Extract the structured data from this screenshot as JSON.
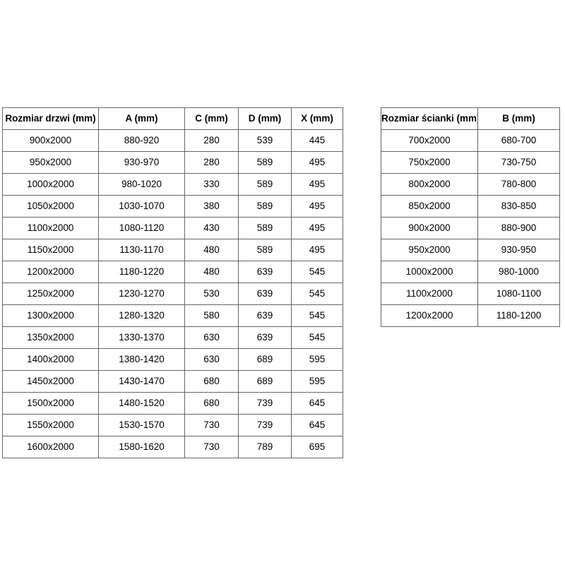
{
  "colors": {
    "background": "#ffffff",
    "border": "#666666",
    "text": "#000000"
  },
  "tables": [
    {
      "name": "door-size-table",
      "headers": [
        "Rozmiar drzwi (mm)",
        "A (mm)",
        "C (mm)",
        "D (mm)",
        "X (mm)"
      ],
      "rows": [
        [
          "900x2000",
          "880-920",
          "280",
          "539",
          "445"
        ],
        [
          "950x2000",
          "930-970",
          "280",
          "589",
          "495"
        ],
        [
          "1000x2000",
          "980-1020",
          "330",
          "589",
          "495"
        ],
        [
          "1050x2000",
          "1030-1070",
          "380",
          "589",
          "495"
        ],
        [
          "1100x2000",
          "1080-1120",
          "430",
          "589",
          "495"
        ],
        [
          "1150x2000",
          "1130-1170",
          "480",
          "589",
          "495"
        ],
        [
          "1200x2000",
          "1180-1220",
          "480",
          "639",
          "545"
        ],
        [
          "1250x2000",
          "1230-1270",
          "530",
          "639",
          "545"
        ],
        [
          "1300x2000",
          "1280-1320",
          "580",
          "639",
          "545"
        ],
        [
          "1350x2000",
          "1330-1370",
          "630",
          "639",
          "545"
        ],
        [
          "1400x2000",
          "1380-1420",
          "630",
          "689",
          "595"
        ],
        [
          "1450x2000",
          "1430-1470",
          "680",
          "689",
          "595"
        ],
        [
          "1500x2000",
          "1480-1520",
          "680",
          "739",
          "645"
        ],
        [
          "1550x2000",
          "1530-1570",
          "730",
          "739",
          "645"
        ],
        [
          "1600x2000",
          "1580-1620",
          "730",
          "789",
          "695"
        ]
      ]
    },
    {
      "name": "wall-size-table",
      "headers": [
        "Rozmiar ścianki (mm)",
        "B (mm)"
      ],
      "rows": [
        [
          "700x2000",
          "680-700"
        ],
        [
          "750x2000",
          "730-750"
        ],
        [
          "800x2000",
          "780-800"
        ],
        [
          "850x2000",
          "830-850"
        ],
        [
          "900x2000",
          "880-900"
        ],
        [
          "950x2000",
          "930-950"
        ],
        [
          "1000x2000",
          "980-1000"
        ],
        [
          "1100x2000",
          "1080-1100"
        ],
        [
          "1200x2000",
          "1180-1200"
        ]
      ]
    }
  ]
}
